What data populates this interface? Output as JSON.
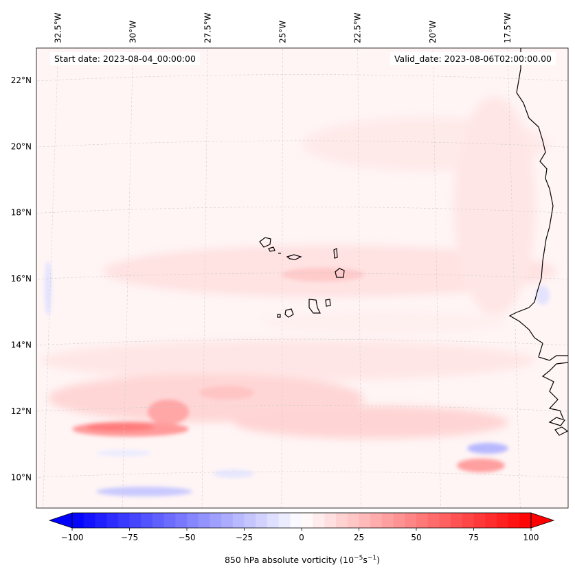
{
  "chart_data": {
    "type": "heatmap",
    "title": "",
    "variable": "850 hPa absolute vorticity",
    "colorbar": {
      "label_text": "850 hPa absolute vorticity (10",
      "label_exp1": "−5",
      "label_mid": "s",
      "label_exp2": "−1",
      "label_end": ")",
      "vmin": -100,
      "vmax": 100,
      "step": 5,
      "extend": "both",
      "ticks": [
        -100,
        -75,
        -50,
        -25,
        0,
        25,
        50,
        75,
        100
      ],
      "tick_labels": [
        "−100",
        "−75",
        "−50",
        "−25",
        "0",
        "25",
        "50",
        "75",
        "100"
      ],
      "cmap": "bwr",
      "placement": "bottom"
    },
    "lon_ticks": [
      "32.5°W",
      "30°W",
      "27.5°W",
      "25°W",
      "22.5°W",
      "20°W",
      "17.5°W"
    ],
    "lon_values": [
      -32.5,
      -30,
      -27.5,
      -25,
      -22.5,
      -20,
      -17.5
    ],
    "lat_ticks": [
      "22°N",
      "20°N",
      "18°N",
      "16°N",
      "14°N",
      "12°N",
      "10°N"
    ],
    "lat_values": [
      22,
      20,
      18,
      16,
      14,
      12,
      10
    ],
    "extent": {
      "lon_min": -32.7,
      "lon_max": -16.0,
      "lat_min": 8.9,
      "lat_max": 22.8
    },
    "gridlines": true,
    "features": [
      {
        "name": "positive band near 11.5°N, 31–27°W",
        "peak_value": 55
      },
      {
        "name": "positive band near 16°N, 25–20°W",
        "peak_value": 15
      },
      {
        "name": "positive band near 11°N, 23–18°W",
        "peak_value": 25
      },
      {
        "name": "negative patch near 10°N, 19°W",
        "peak_value": -25
      },
      {
        "name": "negative band near 9.3°N, 30–27°W",
        "peak_value": -20
      }
    ]
  },
  "annotations": {
    "start_date": "Start date: 2023-08-04_00:00:00",
    "valid_date": "Valid_date: 2023-08-06T02:00:00.00"
  }
}
